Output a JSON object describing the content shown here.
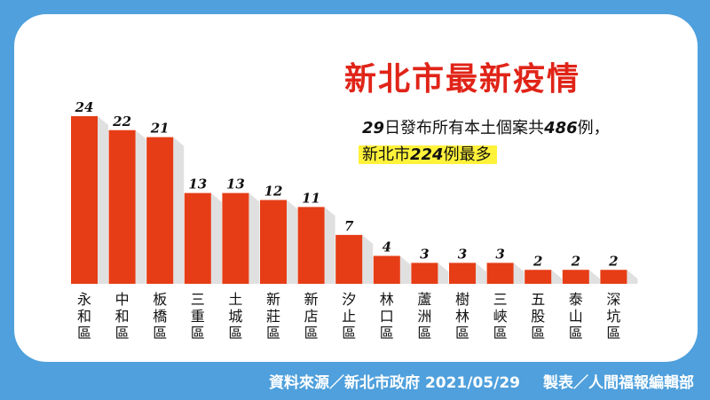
{
  "title": "新北市最新疫情",
  "notes": {
    "line1_a": "29",
    "line1_b": "日發布所有本土個案共",
    "line1_c": "486",
    "line1_d": "例，",
    "line2_a": "新北市",
    "line2_b": "224",
    "line2_c": "例最多"
  },
  "footer": {
    "source": "資料來源／新北市政府 2021/05/29",
    "credit": "製表／人間福報編輯部"
  },
  "colors": {
    "background": "#4fa0dc",
    "bar": "#e63d16",
    "title": "#e02418",
    "highlight": "#fff23b"
  },
  "chart_data": {
    "type": "bar",
    "title": "新北市最新疫情",
    "categories": [
      "永和區",
      "中和區",
      "板橋區",
      "三重區",
      "土城區",
      "新莊區",
      "新店區",
      "汐止區",
      "林口區",
      "蘆洲區",
      "樹林區",
      "三峽區",
      "五股區",
      "泰山區",
      "深坑區"
    ],
    "values": [
      24,
      22,
      21,
      13,
      13,
      12,
      11,
      7,
      4,
      3,
      3,
      3,
      2,
      2,
      2
    ],
    "ylim": [
      0,
      24
    ],
    "grid": false,
    "legend": "none"
  }
}
